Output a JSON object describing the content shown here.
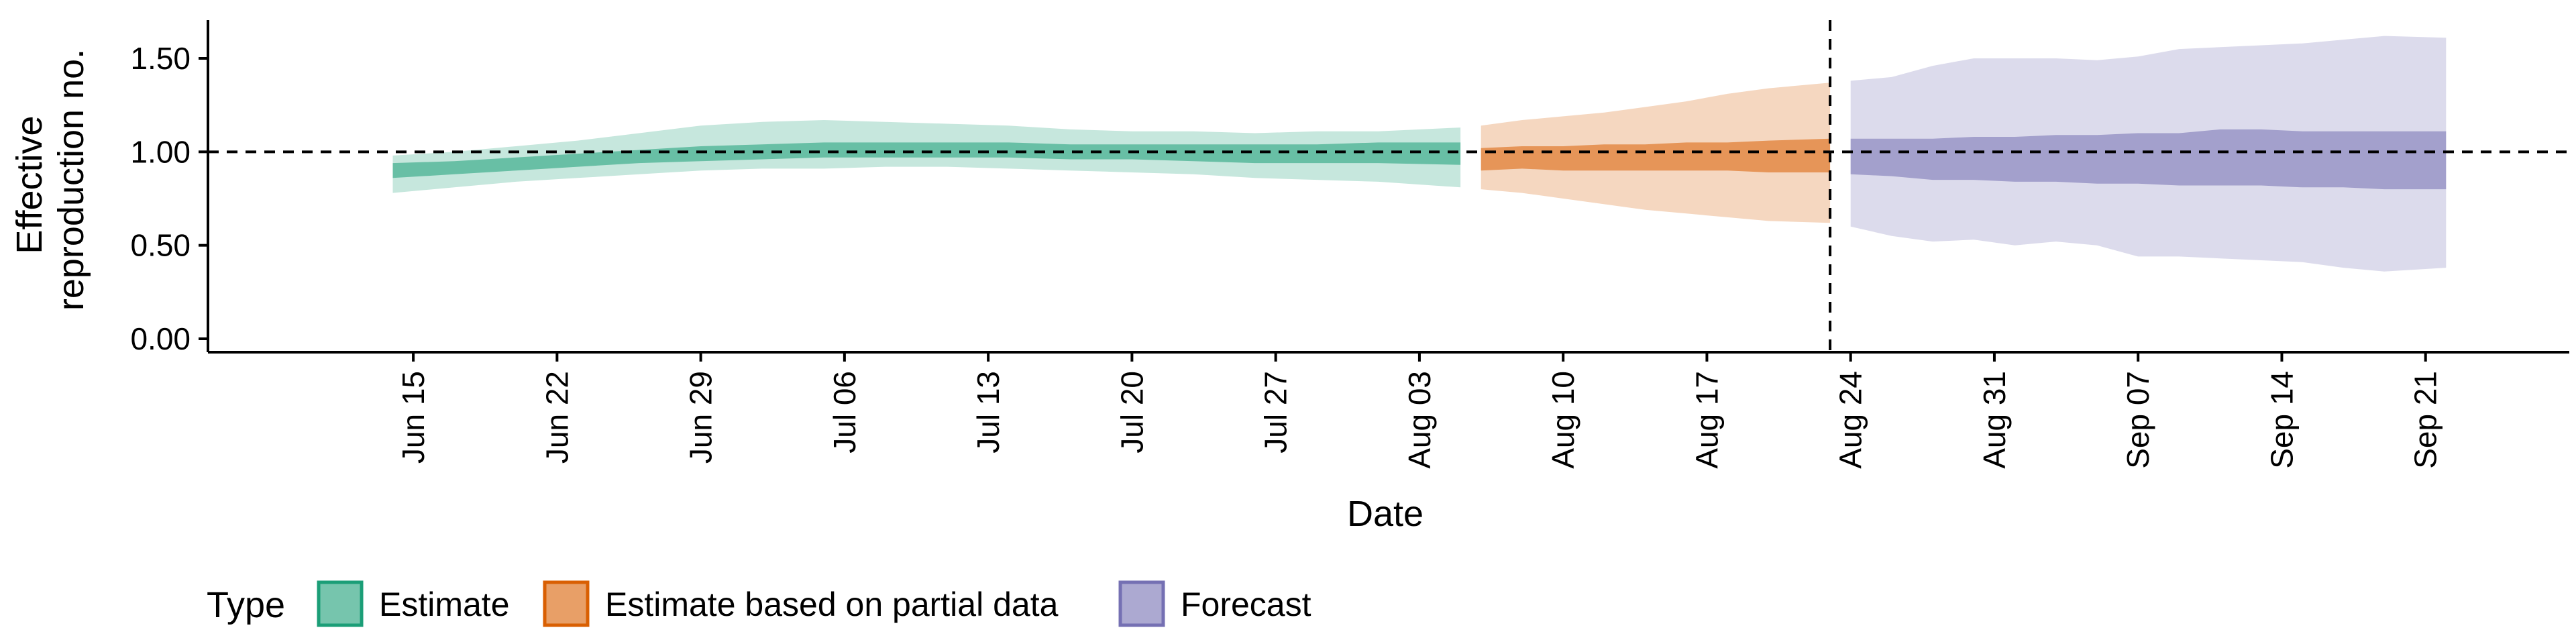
{
  "chart_data": {
    "type": "area",
    "title": "",
    "xlabel": "Date",
    "ylabel_lines": [
      "Effective",
      "reproduction no."
    ],
    "ylim": [
      0,
      1.68
    ],
    "y_ticks": [
      {
        "value": 0,
        "label": "0.00"
      },
      {
        "value": 0.5,
        "label": "0.50"
      },
      {
        "value": 1,
        "label": "1.00"
      },
      {
        "value": 1.5,
        "label": "1.50"
      }
    ],
    "x_range": [
      "2020-06-05",
      "2020-09-28"
    ],
    "x_ticks": [
      {
        "date": "2020-06-15",
        "label": "Jun 15"
      },
      {
        "date": "2020-06-22",
        "label": "Jun 22"
      },
      {
        "date": "2020-06-29",
        "label": "Jun 29"
      },
      {
        "date": "2020-07-06",
        "label": "Jul 06"
      },
      {
        "date": "2020-07-13",
        "label": "Jul 13"
      },
      {
        "date": "2020-07-20",
        "label": "Jul 20"
      },
      {
        "date": "2020-07-27",
        "label": "Jul 27"
      },
      {
        "date": "2020-08-03",
        "label": "Aug 03"
      },
      {
        "date": "2020-08-10",
        "label": "Aug 10"
      },
      {
        "date": "2020-08-17",
        "label": "Aug 17"
      },
      {
        "date": "2020-08-24",
        "label": "Aug 24"
      },
      {
        "date": "2020-08-31",
        "label": "Aug 31"
      },
      {
        "date": "2020-09-07",
        "label": "Sep 07"
      },
      {
        "date": "2020-09-14",
        "label": "Sep 14"
      },
      {
        "date": "2020-09-21",
        "label": "Sep 21"
      }
    ],
    "reference_hline": 1.0,
    "reference_vline": "2020-08-23",
    "grid": false,
    "legend_position": "bottom-left",
    "legend_title": "Type",
    "series": [
      {
        "name": "Estimate",
        "color": "#1b9e77",
        "x": [
          "2020-06-14",
          "2020-06-17",
          "2020-06-20",
          "2020-06-23",
          "2020-06-26",
          "2020-06-29",
          "2020-07-02",
          "2020-07-05",
          "2020-07-08",
          "2020-07-11",
          "2020-07-14",
          "2020-07-17",
          "2020-07-20",
          "2020-07-23",
          "2020-07-26",
          "2020-07-29",
          "2020-08-01",
          "2020-08-05"
        ],
        "outer_lower": [
          0.78,
          0.81,
          0.84,
          0.86,
          0.88,
          0.9,
          0.91,
          0.91,
          0.92,
          0.92,
          0.91,
          0.9,
          0.89,
          0.88,
          0.86,
          0.85,
          0.84,
          0.81
        ],
        "outer_upper": [
          0.98,
          1.0,
          1.03,
          1.06,
          1.1,
          1.14,
          1.16,
          1.17,
          1.16,
          1.15,
          1.14,
          1.12,
          1.11,
          1.11,
          1.1,
          1.11,
          1.11,
          1.13
        ],
        "inner_lower": [
          0.86,
          0.88,
          0.9,
          0.92,
          0.94,
          0.95,
          0.96,
          0.97,
          0.97,
          0.97,
          0.97,
          0.96,
          0.96,
          0.95,
          0.94,
          0.94,
          0.94,
          0.93
        ],
        "inner_upper": [
          0.94,
          0.95,
          0.97,
          0.99,
          1.01,
          1.03,
          1.04,
          1.05,
          1.05,
          1.05,
          1.05,
          1.04,
          1.04,
          1.04,
          1.04,
          1.04,
          1.05,
          1.05
        ]
      },
      {
        "name": "Estimate based on partial data",
        "color": "#d95f02",
        "x": [
          "2020-08-06",
          "2020-08-08",
          "2020-08-10",
          "2020-08-12",
          "2020-08-14",
          "2020-08-16",
          "2020-08-18",
          "2020-08-20",
          "2020-08-23"
        ],
        "outer_lower": [
          0.8,
          0.78,
          0.75,
          0.72,
          0.69,
          0.67,
          0.65,
          0.63,
          0.62
        ],
        "outer_upper": [
          1.14,
          1.17,
          1.19,
          1.21,
          1.24,
          1.27,
          1.31,
          1.34,
          1.37
        ],
        "inner_lower": [
          0.9,
          0.91,
          0.9,
          0.9,
          0.9,
          0.9,
          0.9,
          0.89,
          0.89
        ],
        "inner_upper": [
          1.02,
          1.03,
          1.03,
          1.04,
          1.04,
          1.05,
          1.05,
          1.06,
          1.07
        ]
      },
      {
        "name": "Forecast",
        "color": "#7570b3",
        "x": [
          "2020-08-24",
          "2020-08-26",
          "2020-08-28",
          "2020-08-30",
          "2020-09-01",
          "2020-09-03",
          "2020-09-05",
          "2020-09-07",
          "2020-09-09",
          "2020-09-11",
          "2020-09-13",
          "2020-09-15",
          "2020-09-17",
          "2020-09-19",
          "2020-09-22"
        ],
        "outer_lower": [
          0.6,
          0.55,
          0.52,
          0.53,
          0.5,
          0.52,
          0.5,
          0.44,
          0.44,
          0.43,
          0.42,
          0.41,
          0.38,
          0.36,
          0.38
        ],
        "outer_upper": [
          1.38,
          1.4,
          1.46,
          1.5,
          1.5,
          1.5,
          1.49,
          1.51,
          1.55,
          1.56,
          1.57,
          1.58,
          1.6,
          1.62,
          1.61
        ],
        "inner_lower": [
          0.88,
          0.87,
          0.85,
          0.85,
          0.84,
          0.84,
          0.83,
          0.83,
          0.82,
          0.82,
          0.82,
          0.81,
          0.81,
          0.8,
          0.8
        ],
        "inner_upper": [
          1.07,
          1.07,
          1.07,
          1.08,
          1.08,
          1.09,
          1.09,
          1.1,
          1.1,
          1.12,
          1.12,
          1.11,
          1.11,
          1.11,
          1.11
        ]
      }
    ]
  }
}
